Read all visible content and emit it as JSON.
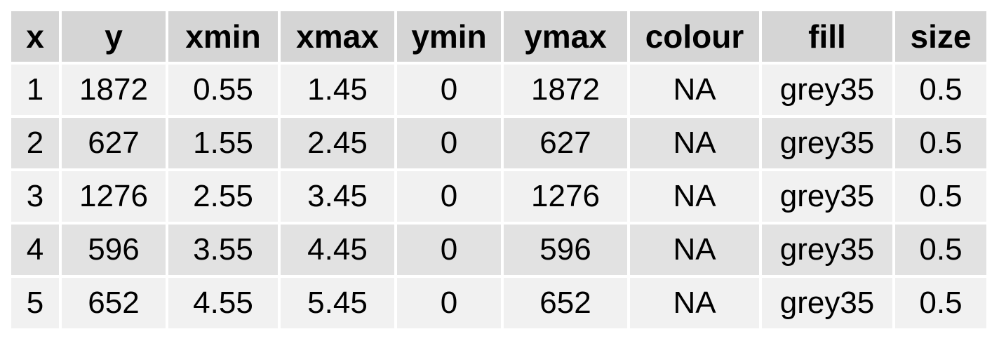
{
  "chart_data": {
    "type": "table",
    "columns": [
      "x",
      "y",
      "xmin",
      "xmax",
      "ymin",
      "ymax",
      "colour",
      "fill",
      "size"
    ],
    "rows": [
      [
        "1",
        "1872",
        "0.55",
        "1.45",
        "0",
        "1872",
        "NA",
        "grey35",
        "0.5"
      ],
      [
        "2",
        "627",
        "1.55",
        "2.45",
        "0",
        "627",
        "NA",
        "grey35",
        "0.5"
      ],
      [
        "3",
        "1276",
        "2.55",
        "3.45",
        "0",
        "1276",
        "NA",
        "grey35",
        "0.5"
      ],
      [
        "4",
        "596",
        "3.55",
        "4.45",
        "0",
        "596",
        "NA",
        "grey35",
        "0.5"
      ],
      [
        "5",
        "652",
        "4.55",
        "5.45",
        "0",
        "652",
        "NA",
        "grey35",
        "0.5"
      ]
    ],
    "colors": {
      "header_bg": "#d5d5d5",
      "row_odd_bg": "#f1f1f1",
      "row_even_bg": "#e2e2e2",
      "text": "#000000"
    }
  }
}
